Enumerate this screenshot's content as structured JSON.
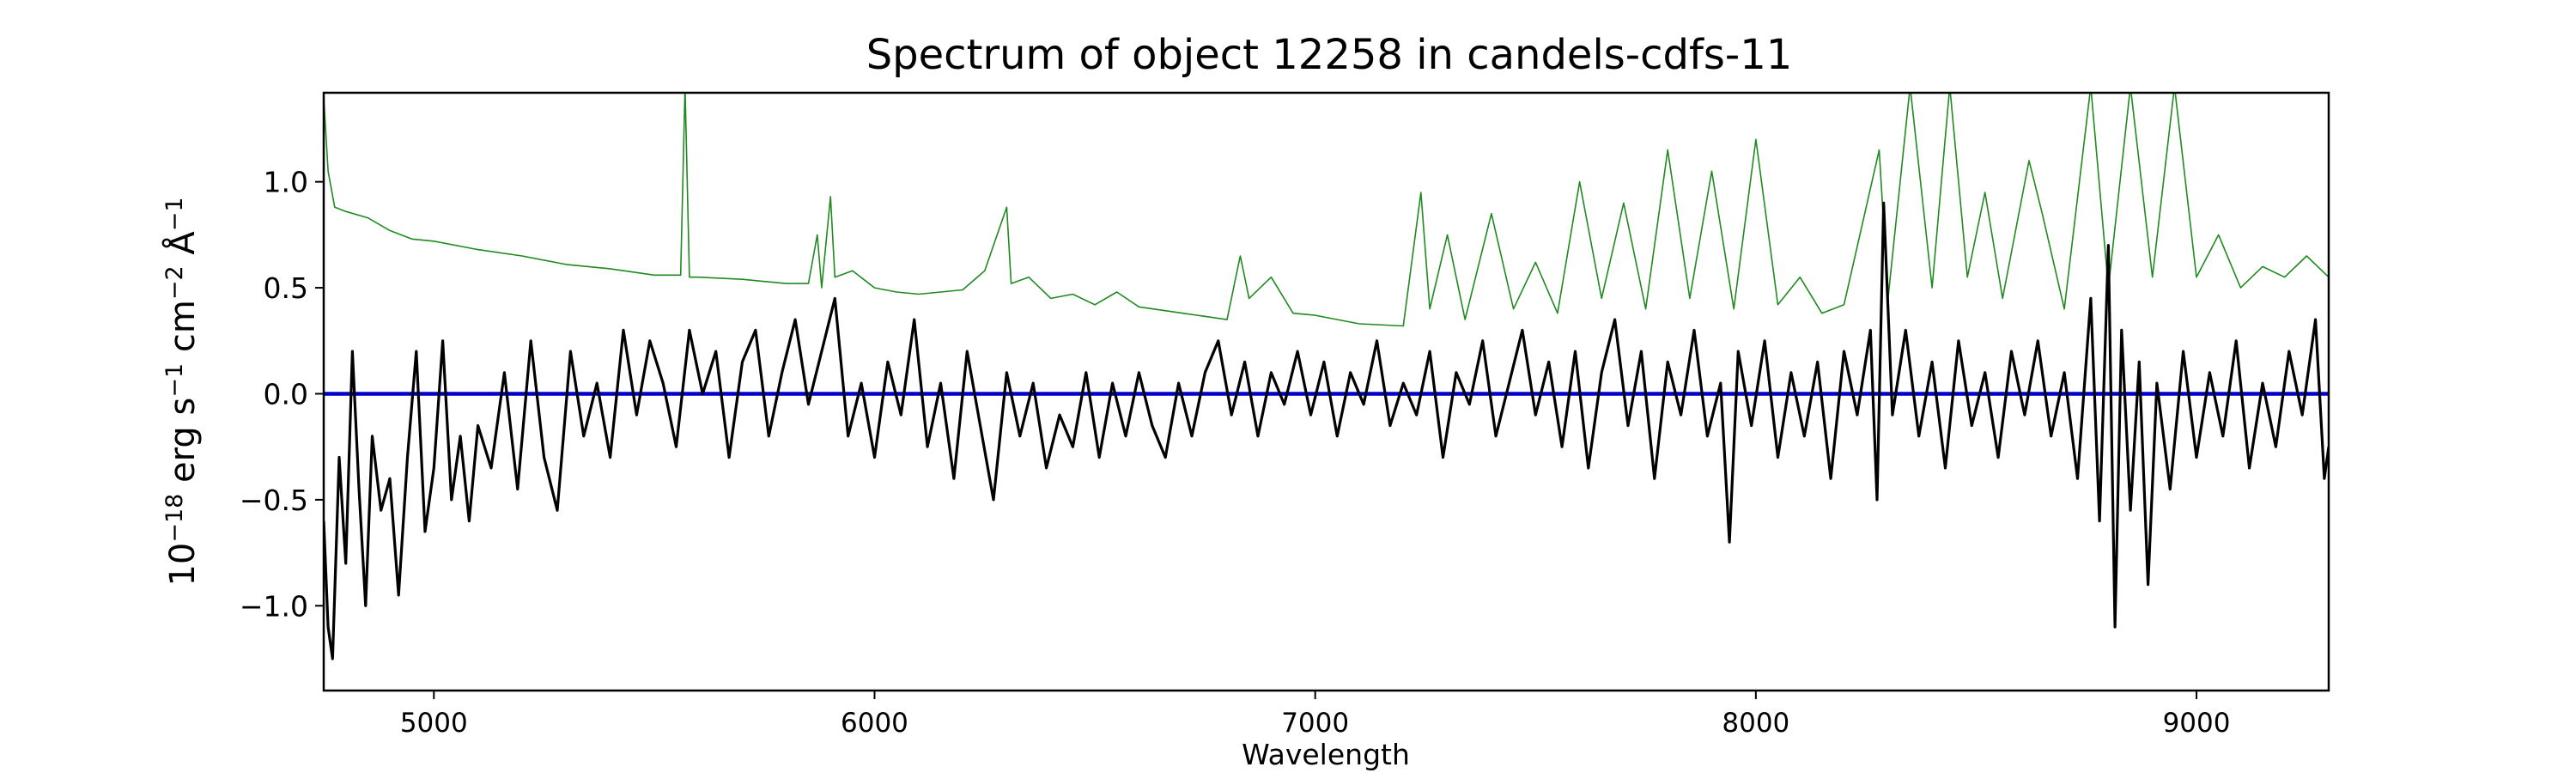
{
  "chart_data": {
    "type": "line",
    "title": "Spectrum of object 12258 in candels-cdfs-11",
    "xlabel": "Wavelength",
    "ylabel": {
      "parts": [
        "10",
        "−18",
        " erg s",
        "−1",
        " cm",
        "−2",
        " Å",
        "−1"
      ]
    },
    "xlim": [
      4750,
      9300
    ],
    "ylim": [
      -1.4,
      1.42
    ],
    "x_ticks": [
      5000,
      6000,
      7000,
      8000,
      9000
    ],
    "y_ticks": [
      -1.0,
      -0.5,
      0.0,
      0.5,
      1.0
    ],
    "x_tick_labels": [
      "5000",
      "6000",
      "7000",
      "8000",
      "9000"
    ],
    "y_tick_labels": [
      "−1.0",
      "−0.5",
      "0.0",
      "0.5",
      "1.0"
    ],
    "grid": false,
    "series": [
      {
        "role": "sky",
        "color": "#1f8a1f",
        "values": [
          [
            4750,
            1.4
          ],
          [
            4760,
            1.05
          ],
          [
            4775,
            0.88
          ],
          [
            4800,
            0.86
          ],
          [
            4850,
            0.83
          ],
          [
            4900,
            0.77
          ],
          [
            4950,
            0.73
          ],
          [
            5000,
            0.72
          ],
          [
            5100,
            0.68
          ],
          [
            5200,
            0.65
          ],
          [
            5300,
            0.61
          ],
          [
            5400,
            0.59
          ],
          [
            5500,
            0.56
          ],
          [
            5560,
            0.56
          ],
          [
            5570,
            1.45
          ],
          [
            5580,
            0.55
          ],
          [
            5600,
            0.55
          ],
          [
            5700,
            0.54
          ],
          [
            5800,
            0.52
          ],
          [
            5850,
            0.52
          ],
          [
            5870,
            0.75
          ],
          [
            5880,
            0.5
          ],
          [
            5900,
            0.93
          ],
          [
            5910,
            0.55
          ],
          [
            5950,
            0.58
          ],
          [
            6000,
            0.5
          ],
          [
            6050,
            0.48
          ],
          [
            6100,
            0.47
          ],
          [
            6200,
            0.49
          ],
          [
            6250,
            0.58
          ],
          [
            6300,
            0.88
          ],
          [
            6310,
            0.52
          ],
          [
            6350,
            0.55
          ],
          [
            6400,
            0.45
          ],
          [
            6450,
            0.47
          ],
          [
            6500,
            0.42
          ],
          [
            6550,
            0.48
          ],
          [
            6600,
            0.41
          ],
          [
            6700,
            0.38
          ],
          [
            6800,
            0.35
          ],
          [
            6830,
            0.65
          ],
          [
            6850,
            0.45
          ],
          [
            6900,
            0.55
          ],
          [
            6950,
            0.38
          ],
          [
            7000,
            0.37
          ],
          [
            7100,
            0.33
          ],
          [
            7200,
            0.32
          ],
          [
            7240,
            0.95
          ],
          [
            7260,
            0.4
          ],
          [
            7300,
            0.75
          ],
          [
            7340,
            0.35
          ],
          [
            7400,
            0.85
          ],
          [
            7450,
            0.4
          ],
          [
            7500,
            0.62
          ],
          [
            7550,
            0.38
          ],
          [
            7600,
            1.0
          ],
          [
            7650,
            0.45
          ],
          [
            7700,
            0.9
          ],
          [
            7750,
            0.4
          ],
          [
            7800,
            1.15
          ],
          [
            7850,
            0.45
          ],
          [
            7900,
            1.05
          ],
          [
            7950,
            0.4
          ],
          [
            8000,
            1.2
          ],
          [
            8050,
            0.42
          ],
          [
            8100,
            0.55
          ],
          [
            8150,
            0.38
          ],
          [
            8200,
            0.42
          ],
          [
            8280,
            1.15
          ],
          [
            8300,
            0.45
          ],
          [
            8350,
            1.45
          ],
          [
            8400,
            0.5
          ],
          [
            8440,
            1.45
          ],
          [
            8480,
            0.55
          ],
          [
            8520,
            0.95
          ],
          [
            8560,
            0.45
          ],
          [
            8620,
            1.1
          ],
          [
            8650,
            0.85
          ],
          [
            8700,
            0.4
          ],
          [
            8760,
            1.45
          ],
          [
            8800,
            0.5
          ],
          [
            8850,
            1.45
          ],
          [
            8900,
            0.55
          ],
          [
            8950,
            1.45
          ],
          [
            9000,
            0.55
          ],
          [
            9050,
            0.75
          ],
          [
            9100,
            0.5
          ],
          [
            9150,
            0.6
          ],
          [
            9200,
            0.55
          ],
          [
            9250,
            0.65
          ],
          [
            9300,
            0.55
          ]
        ]
      },
      {
        "role": "model",
        "color": "#0000cc",
        "values": [
          [
            4750,
            0.0
          ],
          [
            9300,
            0.0
          ]
        ]
      },
      {
        "role": "spectrum",
        "color": "#000000",
        "values": [
          [
            4750,
            -0.6
          ],
          [
            4760,
            -1.1
          ],
          [
            4770,
            -1.25
          ],
          [
            4785,
            -0.3
          ],
          [
            4800,
            -0.8
          ],
          [
            4815,
            0.2
          ],
          [
            4830,
            -0.45
          ],
          [
            4845,
            -1.0
          ],
          [
            4860,
            -0.2
          ],
          [
            4880,
            -0.55
          ],
          [
            4900,
            -0.4
          ],
          [
            4920,
            -0.95
          ],
          [
            4940,
            -0.3
          ],
          [
            4960,
            0.2
          ],
          [
            4980,
            -0.65
          ],
          [
            5000,
            -0.35
          ],
          [
            5020,
            0.25
          ],
          [
            5040,
            -0.5
          ],
          [
            5060,
            -0.2
          ],
          [
            5080,
            -0.6
          ],
          [
            5100,
            -0.15
          ],
          [
            5130,
            -0.35
          ],
          [
            5160,
            0.1
          ],
          [
            5190,
            -0.45
          ],
          [
            5220,
            0.25
          ],
          [
            5250,
            -0.3
          ],
          [
            5280,
            -0.55
          ],
          [
            5310,
            0.2
          ],
          [
            5340,
            -0.2
          ],
          [
            5370,
            0.05
          ],
          [
            5400,
            -0.3
          ],
          [
            5430,
            0.3
          ],
          [
            5460,
            -0.1
          ],
          [
            5490,
            0.25
          ],
          [
            5520,
            0.05
          ],
          [
            5550,
            -0.25
          ],
          [
            5580,
            0.3
          ],
          [
            5610,
            0.0
          ],
          [
            5640,
            0.2
          ],
          [
            5670,
            -0.3
          ],
          [
            5700,
            0.15
          ],
          [
            5730,
            0.3
          ],
          [
            5760,
            -0.2
          ],
          [
            5790,
            0.1
          ],
          [
            5820,
            0.35
          ],
          [
            5850,
            -0.05
          ],
          [
            5880,
            0.2
          ],
          [
            5910,
            0.45
          ],
          [
            5940,
            -0.2
          ],
          [
            5970,
            0.05
          ],
          [
            6000,
            -0.3
          ],
          [
            6030,
            0.15
          ],
          [
            6060,
            -0.1
          ],
          [
            6090,
            0.35
          ],
          [
            6120,
            -0.25
          ],
          [
            6150,
            0.05
          ],
          [
            6180,
            -0.4
          ],
          [
            6210,
            0.2
          ],
          [
            6240,
            -0.15
          ],
          [
            6270,
            -0.5
          ],
          [
            6300,
            0.1
          ],
          [
            6330,
            -0.2
          ],
          [
            6360,
            0.05
          ],
          [
            6390,
            -0.35
          ],
          [
            6420,
            -0.1
          ],
          [
            6450,
            -0.25
          ],
          [
            6480,
            0.1
          ],
          [
            6510,
            -0.3
          ],
          [
            6540,
            0.05
          ],
          [
            6570,
            -0.2
          ],
          [
            6600,
            0.1
          ],
          [
            6630,
            -0.15
          ],
          [
            6660,
            -0.3
          ],
          [
            6690,
            0.05
          ],
          [
            6720,
            -0.2
          ],
          [
            6750,
            0.1
          ],
          [
            6780,
            0.25
          ],
          [
            6810,
            -0.1
          ],
          [
            6840,
            0.15
          ],
          [
            6870,
            -0.2
          ],
          [
            6900,
            0.1
          ],
          [
            6930,
            -0.05
          ],
          [
            6960,
            0.2
          ],
          [
            6990,
            -0.1
          ],
          [
            7020,
            0.15
          ],
          [
            7050,
            -0.2
          ],
          [
            7080,
            0.1
          ],
          [
            7110,
            -0.05
          ],
          [
            7140,
            0.25
          ],
          [
            7170,
            -0.15
          ],
          [
            7200,
            0.05
          ],
          [
            7230,
            -0.1
          ],
          [
            7260,
            0.2
          ],
          [
            7290,
            -0.3
          ],
          [
            7320,
            0.1
          ],
          [
            7350,
            -0.05
          ],
          [
            7380,
            0.25
          ],
          [
            7410,
            -0.2
          ],
          [
            7440,
            0.05
          ],
          [
            7470,
            0.3
          ],
          [
            7500,
            -0.1
          ],
          [
            7530,
            0.15
          ],
          [
            7560,
            -0.25
          ],
          [
            7590,
            0.2
          ],
          [
            7620,
            -0.35
          ],
          [
            7650,
            0.1
          ],
          [
            7680,
            0.35
          ],
          [
            7710,
            -0.15
          ],
          [
            7740,
            0.2
          ],
          [
            7770,
            -0.4
          ],
          [
            7800,
            0.15
          ],
          [
            7830,
            -0.1
          ],
          [
            7860,
            0.3
          ],
          [
            7890,
            -0.2
          ],
          [
            7920,
            0.05
          ],
          [
            7940,
            -0.7
          ],
          [
            7960,
            0.2
          ],
          [
            7990,
            -0.15
          ],
          [
            8020,
            0.25
          ],
          [
            8050,
            -0.3
          ],
          [
            8080,
            0.1
          ],
          [
            8110,
            -0.2
          ],
          [
            8140,
            0.15
          ],
          [
            8170,
            -0.4
          ],
          [
            8200,
            0.2
          ],
          [
            8230,
            -0.1
          ],
          [
            8260,
            0.3
          ],
          [
            8275,
            -0.5
          ],
          [
            8290,
            0.9
          ],
          [
            8310,
            -0.1
          ],
          [
            8340,
            0.3
          ],
          [
            8370,
            -0.2
          ],
          [
            8400,
            0.15
          ],
          [
            8430,
            -0.35
          ],
          [
            8460,
            0.25
          ],
          [
            8490,
            -0.15
          ],
          [
            8520,
            0.1
          ],
          [
            8550,
            -0.3
          ],
          [
            8580,
            0.2
          ],
          [
            8610,
            -0.1
          ],
          [
            8640,
            0.25
          ],
          [
            8670,
            -0.2
          ],
          [
            8700,
            0.1
          ],
          [
            8730,
            -0.4
          ],
          [
            8760,
            0.45
          ],
          [
            8780,
            -0.6
          ],
          [
            8800,
            0.7
          ],
          [
            8815,
            -1.1
          ],
          [
            8830,
            0.3
          ],
          [
            8850,
            -0.55
          ],
          [
            8870,
            0.15
          ],
          [
            8890,
            -0.9
          ],
          [
            8910,
            0.05
          ],
          [
            8940,
            -0.45
          ],
          [
            8970,
            0.2
          ],
          [
            9000,
            -0.3
          ],
          [
            9030,
            0.1
          ],
          [
            9060,
            -0.2
          ],
          [
            9090,
            0.25
          ],
          [
            9120,
            -0.35
          ],
          [
            9150,
            0.05
          ],
          [
            9180,
            -0.25
          ],
          [
            9210,
            0.2
          ],
          [
            9240,
            -0.1
          ],
          [
            9270,
            0.35
          ],
          [
            9290,
            -0.4
          ],
          [
            9300,
            -0.25
          ]
        ]
      }
    ]
  }
}
